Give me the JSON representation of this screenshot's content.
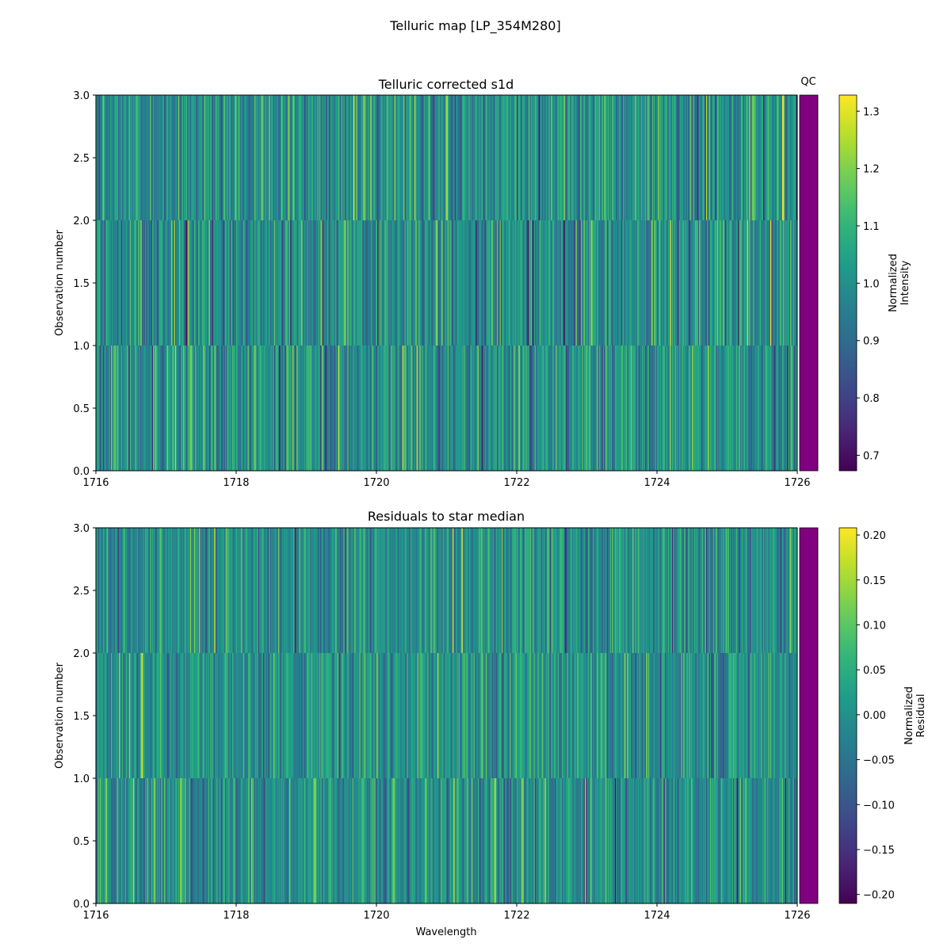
{
  "figure": {
    "suptitle": "Telluric map [LP_354M280]"
  },
  "colors": {
    "qc_bar": "#800080",
    "colormap": "viridis"
  },
  "chart_data": [
    {
      "type": "heatmap",
      "title": "Telluric corrected s1d",
      "xlabel": "",
      "ylabel": "Observation number",
      "xlim": [
        1716,
        1726
      ],
      "ylim": [
        0,
        3
      ],
      "xticks": [
        "1716",
        "1718",
        "1720",
        "1722",
        "1724",
        "1726"
      ],
      "yticks": [
        "0.0",
        "0.5",
        "1.0",
        "1.5",
        "2.0",
        "2.5",
        "3.0"
      ],
      "rows": 3,
      "columns_per_row": 700,
      "value_center": 1.0,
      "value_spread": 0.09,
      "qc_label": "QC",
      "colorbar": {
        "label": "Normalized\nIntensity",
        "label_lines": [
          "Normalized",
          "Intensity"
        ],
        "min": 0.673,
        "max": 1.328,
        "ticks": [
          "0.7",
          "0.8",
          "0.9",
          "1.0",
          "1.1",
          "1.2",
          "1.3"
        ],
        "tick_values": [
          0.7,
          0.8,
          0.9,
          1.0,
          1.1,
          1.2,
          1.3
        ]
      }
    },
    {
      "type": "heatmap",
      "title": "Residuals to star median",
      "xlabel": "Wavelength",
      "ylabel": "Observation number",
      "xlim": [
        1716,
        1726
      ],
      "ylim": [
        0,
        3
      ],
      "xticks": [
        "1716",
        "1718",
        "1720",
        "1722",
        "1724",
        "1726"
      ],
      "yticks": [
        "0.0",
        "0.5",
        "1.0",
        "1.5",
        "2.0",
        "2.5",
        "3.0"
      ],
      "rows": 3,
      "columns_per_row": 700,
      "value_center": 0.0,
      "value_spread": 0.05,
      "qc_label": "",
      "colorbar": {
        "label": "Normalized\nResidual",
        "label_lines": [
          "Normalized",
          "Residual"
        ],
        "min": -0.21,
        "max": 0.208,
        "ticks": [
          "0.20",
          "0.15",
          "0.10",
          "0.05",
          "0.00",
          "−0.05",
          "−0.10",
          "−0.15",
          "−0.20"
        ],
        "tick_values": [
          0.2,
          0.15,
          0.1,
          0.05,
          0.0,
          -0.05,
          -0.1,
          -0.15,
          -0.2
        ]
      }
    }
  ]
}
